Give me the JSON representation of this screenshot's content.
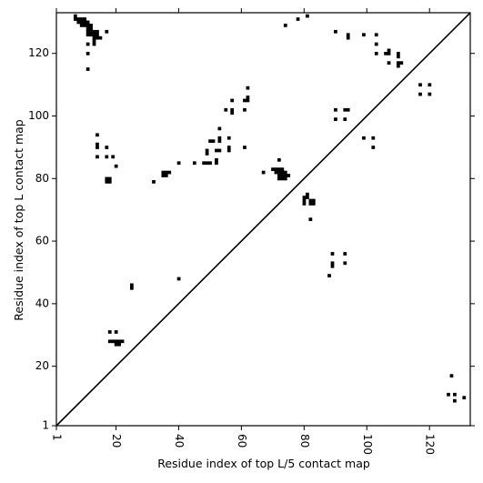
{
  "chart_data": {
    "type": "heatmap",
    "title": "",
    "xlabel": "Residue index of top L/5 contact map",
    "ylabel": "Residue index of top L contact map",
    "xlim": [
      1,
      133
    ],
    "ylim": [
      1,
      133
    ],
    "x_ticks": [
      1,
      20,
      40,
      60,
      80,
      100,
      120
    ],
    "y_ticks": [
      1,
      20,
      40,
      60,
      80,
      100,
      120
    ],
    "x_tick_labels": [
      "1",
      "20",
      "40",
      "60",
      "80",
      "100",
      "120"
    ],
    "y_tick_labels": [
      "1",
      "20",
      "40",
      "60",
      "80",
      "100",
      "120"
    ],
    "x_tick_label_rotation": 90,
    "diagonal_line": true,
    "grid": false,
    "colors": {
      "contact": "#000000",
      "background": "#ffffff",
      "line": "#000000"
    },
    "contacts": [
      [
        7,
        132
      ],
      [
        7,
        131
      ],
      [
        8,
        131
      ],
      [
        9,
        131
      ],
      [
        10,
        131
      ],
      [
        8,
        130
      ],
      [
        9,
        130
      ],
      [
        10,
        130
      ],
      [
        11,
        130
      ],
      [
        9,
        129
      ],
      [
        10,
        129
      ],
      [
        11,
        129
      ],
      [
        12,
        129
      ],
      [
        11,
        128
      ],
      [
        12,
        128
      ],
      [
        11,
        127
      ],
      [
        12,
        127
      ],
      [
        13,
        127
      ],
      [
        14,
        127
      ],
      [
        17,
        127
      ],
      [
        11,
        126
      ],
      [
        12,
        126
      ],
      [
        13,
        126
      ],
      [
        14,
        126
      ],
      [
        13,
        125
      ],
      [
        14,
        125
      ],
      [
        15,
        125
      ],
      [
        13,
        124
      ],
      [
        13,
        123
      ],
      [
        11,
        123
      ],
      [
        11,
        120
      ],
      [
        11,
        115
      ],
      [
        78,
        131
      ],
      [
        81,
        132
      ],
      [
        74,
        129
      ],
      [
        90,
        127
      ],
      [
        94,
        126
      ],
      [
        94,
        125
      ],
      [
        99,
        126
      ],
      [
        103,
        126
      ],
      [
        103,
        123
      ],
      [
        103,
        120
      ],
      [
        107,
        121
      ],
      [
        106,
        120
      ],
      [
        107,
        120
      ],
      [
        110,
        120
      ],
      [
        110,
        119
      ],
      [
        107,
        117
      ],
      [
        110,
        117
      ],
      [
        111,
        117
      ],
      [
        110,
        116
      ],
      [
        117,
        110
      ],
      [
        120,
        110
      ],
      [
        117,
        107
      ],
      [
        120,
        107
      ],
      [
        62,
        109
      ],
      [
        62,
        106
      ],
      [
        61,
        105
      ],
      [
        62,
        105
      ],
      [
        57,
        105
      ],
      [
        55,
        102
      ],
      [
        57,
        102
      ],
      [
        61,
        102
      ],
      [
        57,
        101
      ],
      [
        90,
        102
      ],
      [
        93,
        102
      ],
      [
        94,
        102
      ],
      [
        90,
        99
      ],
      [
        93,
        99
      ],
      [
        53,
        96
      ],
      [
        53,
        93
      ],
      [
        56,
        93
      ],
      [
        53,
        92
      ],
      [
        50,
        92
      ],
      [
        51,
        92
      ],
      [
        49,
        89
      ],
      [
        49,
        88
      ],
      [
        52,
        89
      ],
      [
        53,
        89
      ],
      [
        56,
        89
      ],
      [
        56,
        90
      ],
      [
        61,
        90
      ],
      [
        52,
        86
      ],
      [
        52,
        85
      ],
      [
        48,
        85
      ],
      [
        49,
        85
      ],
      [
        50,
        85
      ],
      [
        45,
        85
      ],
      [
        40,
        85
      ],
      [
        99,
        93
      ],
      [
        102,
        93
      ],
      [
        102,
        90
      ],
      [
        14,
        94
      ],
      [
        14,
        91
      ],
      [
        14,
        90
      ],
      [
        17,
        90
      ],
      [
        14,
        87
      ],
      [
        17,
        87
      ],
      [
        19,
        87
      ],
      [
        20,
        84
      ],
      [
        17,
        80
      ],
      [
        18,
        80
      ],
      [
        17,
        79
      ],
      [
        18,
        79
      ],
      [
        35,
        82
      ],
      [
        36,
        82
      ],
      [
        37,
        82
      ],
      [
        35,
        81
      ],
      [
        36,
        81
      ],
      [
        32,
        79
      ],
      [
        72,
        86
      ],
      [
        67,
        82
      ],
      [
        70,
        83
      ],
      [
        71,
        83
      ],
      [
        72,
        83
      ],
      [
        73,
        83
      ],
      [
        71,
        82
      ],
      [
        72,
        82
      ],
      [
        73,
        82
      ],
      [
        74,
        82
      ],
      [
        72,
        81
      ],
      [
        73,
        81
      ],
      [
        74,
        81
      ],
      [
        75,
        81
      ],
      [
        72,
        80
      ],
      [
        73,
        80
      ],
      [
        74,
        80
      ],
      [
        81,
        75
      ],
      [
        80,
        74
      ],
      [
        81,
        74
      ],
      [
        80,
        73
      ],
      [
        82,
        73
      ],
      [
        83,
        73
      ],
      [
        80,
        72
      ],
      [
        82,
        72
      ],
      [
        83,
        72
      ],
      [
        82,
        67
      ],
      [
        25,
        46
      ],
      [
        25,
        45
      ],
      [
        40,
        48
      ],
      [
        89,
        56
      ],
      [
        93,
        56
      ],
      [
        89,
        53
      ],
      [
        89,
        52
      ],
      [
        93,
        53
      ],
      [
        88,
        49
      ],
      [
        18,
        31
      ],
      [
        20,
        31
      ],
      [
        18,
        28
      ],
      [
        19,
        28
      ],
      [
        20,
        28
      ],
      [
        21,
        28
      ],
      [
        22,
        28
      ],
      [
        20,
        27
      ],
      [
        21,
        27
      ],
      [
        127,
        17
      ],
      [
        126,
        11
      ],
      [
        128,
        11
      ],
      [
        128,
        9
      ],
      [
        131,
        10
      ]
    ]
  }
}
